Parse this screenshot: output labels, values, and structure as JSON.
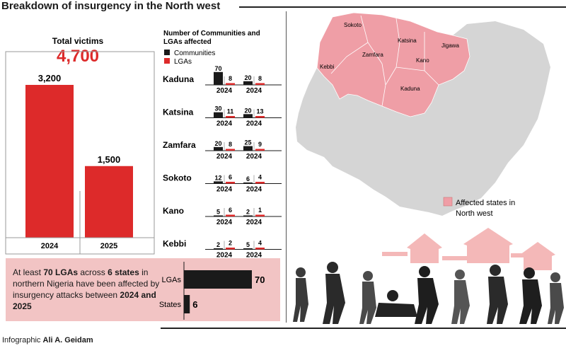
{
  "title": "Breakdown of insurgency in the North west",
  "credit": {
    "prefix": "Infographic",
    "author": "Ali A. Geidam"
  },
  "colors": {
    "red": "#dd2a2a",
    "black": "#1a1a1a",
    "pink": "#f2c4c4",
    "map_pink": "#ef9ea6",
    "map_gray": "#d5d5d5"
  },
  "chart_data": [
    {
      "type": "bar",
      "title": "Total victims",
      "subtitle": "4,700",
      "categories": [
        "2024",
        "2025"
      ],
      "values": [
        3200,
        1500
      ],
      "data_labels": [
        "3,200",
        "1,500"
      ]
    },
    {
      "type": "bar",
      "title": "Number of Communities and LGAs affected",
      "legend": [
        "Communities",
        "LGAs"
      ],
      "legend_position": "top-left",
      "states": [
        {
          "state": "Kaduna",
          "years": [
            {
              "year": "2024",
              "communities": 70,
              "lgas": 8
            },
            {
              "year": "2024",
              "communities": 20,
              "lgas": 8
            }
          ]
        },
        {
          "state": "Katsina",
          "years": [
            {
              "year": "2024",
              "communities": 30,
              "lgas": 11
            },
            {
              "year": "2024",
              "communities": 20,
              "lgas": 13
            }
          ]
        },
        {
          "state": "Zamfara",
          "years": [
            {
              "year": "2024",
              "communities": 20,
              "lgas": 8
            },
            {
              "year": "2024",
              "communities": 25,
              "lgas": 9
            }
          ]
        },
        {
          "state": "Sokoto",
          "years": [
            {
              "year": "2024",
              "communities": 12,
              "lgas": 6
            },
            {
              "year": "2024",
              "communities": 6,
              "lgas": 4
            }
          ]
        },
        {
          "state": "Kano",
          "years": [
            {
              "year": "2024",
              "communities": 5,
              "lgas": 6
            },
            {
              "year": "2024",
              "communities": 2,
              "lgas": 1
            }
          ]
        },
        {
          "state": "Kebbi",
          "years": [
            {
              "year": "2024",
              "communities": 2,
              "lgas": 2
            },
            {
              "year": "2024",
              "communities": 5,
              "lgas": 4
            }
          ]
        }
      ]
    },
    {
      "type": "bar",
      "orientation": "horizontal",
      "categories": [
        "LGAs",
        "States"
      ],
      "values": [
        70,
        6
      ]
    }
  ],
  "summary": {
    "p1": "At least ",
    "b1": "70 LGAs",
    "p2": " across ",
    "b2": "6 states",
    "p3": " in northern Nigeria have been affected by insurgency attacks between ",
    "b3": "2024 and 2025"
  },
  "map": {
    "legend": [
      "Affected states in",
      "North west"
    ],
    "state_labels": [
      "Sokoto",
      "Katsina",
      "Jigawa",
      "Zamfara",
      "Kano",
      "Kebbi",
      "Kaduna"
    ]
  }
}
